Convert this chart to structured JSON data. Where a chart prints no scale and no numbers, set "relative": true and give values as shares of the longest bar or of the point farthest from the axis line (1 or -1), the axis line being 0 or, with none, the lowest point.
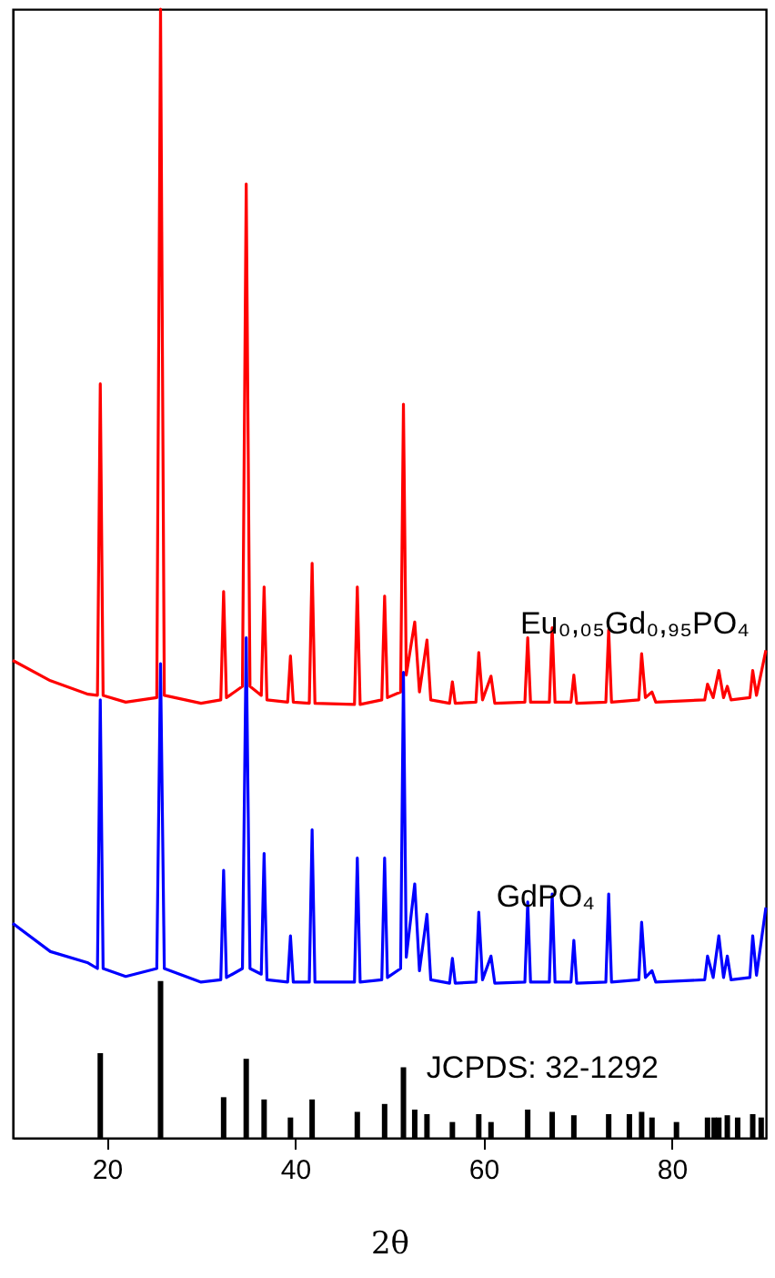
{
  "chart_data": {
    "type": "line",
    "relative": true,
    "xlabel": "2θ",
    "xlim": [
      10,
      90
    ],
    "xticks": [
      20,
      40,
      60,
      80
    ],
    "series": [
      {
        "name": "Eu₀,₀₅Gd₀,₉₅PO₄",
        "color": "#ff0000",
        "x": [
          10,
          14,
          18,
          19.0,
          19.3,
          19.6,
          22,
          25.3,
          25.7,
          26.1,
          30,
          32.1,
          32.4,
          32.7,
          34.4,
          34.8,
          35.2,
          36.4,
          36.7,
          37.0,
          39.2,
          39.5,
          39.8,
          41.5,
          41.8,
          42.1,
          46.3,
          46.6,
          46.9,
          49.2,
          49.5,
          49.8,
          51.2,
          51.5,
          51.8,
          52.7,
          53.2,
          54.0,
          54.4,
          56.4,
          56.7,
          57.0,
          59.2,
          59.5,
          59.9,
          60.8,
          61.2,
          64.4,
          64.7,
          65.0,
          67.0,
          67.3,
          67.6,
          69.3,
          69.6,
          69.9,
          73.0,
          73.3,
          73.6,
          76.5,
          76.8,
          77.2,
          77.9,
          78.3,
          83.5,
          83.8,
          84.4,
          85.0,
          85.5,
          85.9,
          86.3,
          88.3,
          88.6,
          89.0,
          90
        ],
        "values": [
          0.423,
          0.405,
          0.393,
          0.392,
          0.668,
          0.392,
          0.386,
          0.39,
          1,
          0.392,
          0.385,
          0.388,
          0.484,
          0.39,
          0.4,
          0.845,
          0.4,
          0.392,
          0.488,
          0.388,
          0.386,
          0.427,
          0.386,
          0.385,
          0.509,
          0.385,
          0.384,
          0.488,
          0.384,
          0.388,
          0.48,
          0.39,
          0.395,
          0.65,
          0.41,
          0.457,
          0.395,
          0.441,
          0.388,
          0.385,
          0.404,
          0.385,
          0.386,
          0.43,
          0.388,
          0.409,
          0.385,
          0.386,
          0.443,
          0.386,
          0.386,
          0.452,
          0.386,
          0.386,
          0.41,
          0.385,
          0.386,
          0.45,
          0.386,
          0.388,
          0.429,
          0.39,
          0.395,
          0.386,
          0.388,
          0.402,
          0.39,
          0.414,
          0.39,
          0.4,
          0.388,
          0.39,
          0.414,
          0.392,
          0.432
        ]
      },
      {
        "name": "GdPO₄",
        "color": "#0000ff",
        "x": [
          10,
          14,
          18,
          19.0,
          19.3,
          19.6,
          22,
          25.3,
          25.7,
          26.1,
          30,
          32.1,
          32.4,
          32.7,
          34.4,
          34.8,
          35.2,
          36.4,
          36.7,
          37.0,
          39.2,
          39.5,
          39.8,
          41.5,
          41.8,
          42.1,
          46.3,
          46.6,
          46.9,
          49.2,
          49.5,
          49.8,
          51.2,
          51.5,
          51.8,
          52.7,
          53.2,
          54.0,
          54.4,
          56.4,
          56.7,
          57.0,
          59.2,
          59.5,
          59.9,
          60.8,
          61.2,
          64.4,
          64.7,
          65.0,
          67.0,
          67.3,
          67.6,
          69.3,
          69.6,
          69.9,
          73.0,
          73.3,
          73.6,
          76.5,
          76.8,
          77.2,
          77.9,
          78.3,
          83.5,
          83.8,
          84.4,
          85.0,
          85.5,
          85.9,
          86.3,
          88.3,
          88.6,
          89.0,
          90
        ],
        "values": [
          0.19,
          0.165,
          0.155,
          0.15,
          0.388,
          0.15,
          0.143,
          0.15,
          0.42,
          0.15,
          0.138,
          0.14,
          0.237,
          0.142,
          0.15,
          0.443,
          0.15,
          0.145,
          0.252,
          0.14,
          0.138,
          0.179,
          0.138,
          0.138,
          0.273,
          0.138,
          0.138,
          0.248,
          0.138,
          0.14,
          0.248,
          0.142,
          0.15,
          0.4125,
          0.16,
          0.225,
          0.148,
          0.198,
          0.14,
          0.137,
          0.159,
          0.137,
          0.138,
          0.2,
          0.14,
          0.161,
          0.137,
          0.138,
          0.209,
          0.138,
          0.138,
          0.216,
          0.138,
          0.138,
          0.175,
          0.137,
          0.138,
          0.216,
          0.138,
          0.14,
          0.191,
          0.142,
          0.148,
          0.138,
          0.14,
          0.161,
          0.142,
          0.179,
          0.142,
          0.161,
          0.14,
          0.142,
          0.179,
          0.144,
          0.204
        ]
      },
      {
        "name": "JCPDS: 32-1292",
        "color": "#000000",
        "type": "bar",
        "x": [
          19.3,
          25.7,
          32.4,
          34.8,
          36.7,
          39.5,
          41.8,
          46.6,
          49.5,
          51.5,
          52.7,
          54.0,
          56.7,
          59.5,
          60.8,
          64.7,
          67.3,
          69.6,
          73.3,
          75.5,
          76.8,
          77.9,
          80.5,
          83.8,
          84.5,
          85.0,
          85.9,
          87.0,
          88.6,
          89.5
        ],
        "values": [
          0.075,
          0.139,
          0.036,
          0.07,
          0.034,
          0.018,
          0.034,
          0.023,
          0.03,
          0.0625,
          0.025,
          0.021,
          0.014,
          0.021,
          0.014,
          0.025,
          0.023,
          0.02,
          0.021,
          0.021,
          0.023,
          0.018,
          0.014,
          0.018,
          0.018,
          0.018,
          0.02,
          0.018,
          0.021,
          0.018
        ]
      }
    ]
  }
}
